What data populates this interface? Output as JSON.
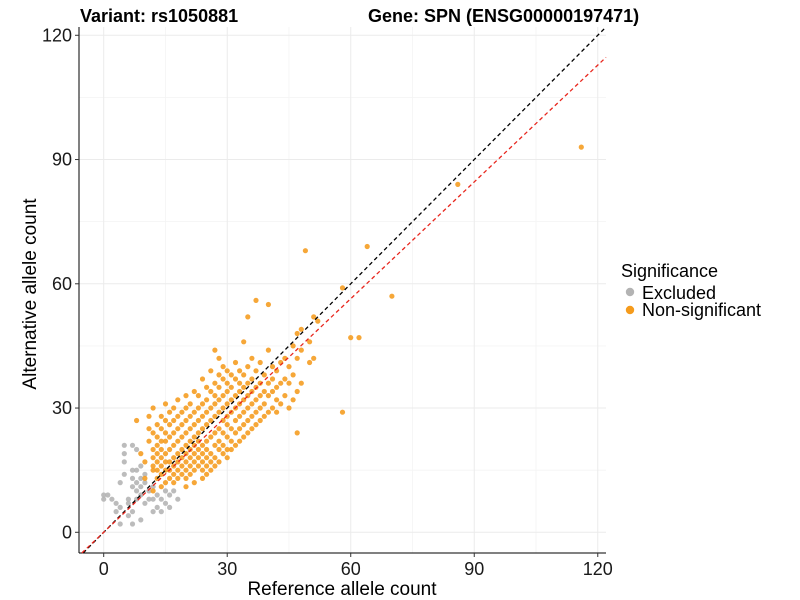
{
  "chart_data": {
    "type": "scatter",
    "title_left": "Variant: rs1050881",
    "title_right": "Gene: SPN (ENSG00000197471)",
    "xlabel": "Reference allele count",
    "ylabel": "Alternative allele count",
    "xlim": [
      -6,
      122
    ],
    "ylim": [
      -5,
      122
    ],
    "xticks": [
      0,
      30,
      60,
      90,
      120
    ],
    "yticks": [
      0,
      30,
      60,
      90,
      120
    ],
    "grid": true,
    "legend": {
      "title": "Significance",
      "position": "right",
      "entries": [
        {
          "label": "Excluded",
          "color": "#b3b3b3"
        },
        {
          "label": "Non-significant",
          "color": "#f59b1c"
        }
      ]
    },
    "reference_lines": [
      {
        "name": "identity",
        "slope": 1.0,
        "intercept": 0,
        "color": "#000000",
        "style": "dashed"
      },
      {
        "name": "fit",
        "slope": 0.94,
        "intercept": 0,
        "color": "#e8261d",
        "style": "dashed"
      }
    ],
    "series": [
      {
        "name": "Excluded",
        "color": "#b3b3b3",
        "points": [
          [
            0,
            8
          ],
          [
            0,
            9
          ],
          [
            1,
            9
          ],
          [
            2,
            8
          ],
          [
            3,
            7
          ],
          [
            3,
            5
          ],
          [
            4,
            6
          ],
          [
            4,
            2
          ],
          [
            4,
            12
          ],
          [
            5,
            14
          ],
          [
            5,
            17
          ],
          [
            5,
            19
          ],
          [
            5,
            21
          ],
          [
            6,
            4
          ],
          [
            6,
            7
          ],
          [
            6,
            8
          ],
          [
            7,
            2
          ],
          [
            7,
            5
          ],
          [
            7,
            11
          ],
          [
            7,
            13
          ],
          [
            7,
            15
          ],
          [
            7,
            21
          ],
          [
            8,
            8
          ],
          [
            8,
            10
          ],
          [
            8,
            12
          ],
          [
            8,
            15
          ],
          [
            8,
            20
          ],
          [
            9,
            3
          ],
          [
            9,
            9
          ],
          [
            9,
            11
          ],
          [
            9,
            13
          ],
          [
            9,
            16
          ],
          [
            10,
            7
          ],
          [
            10,
            12
          ],
          [
            10,
            14
          ],
          [
            11,
            8
          ],
          [
            11,
            10
          ],
          [
            12,
            5
          ],
          [
            12,
            8
          ],
          [
            12,
            11
          ],
          [
            13,
            6
          ],
          [
            13,
            9
          ],
          [
            14,
            5
          ],
          [
            14,
            8
          ],
          [
            15,
            7
          ],
          [
            15,
            10
          ],
          [
            16,
            6
          ],
          [
            16,
            9
          ],
          [
            17,
            10
          ],
          [
            18,
            8
          ]
        ]
      },
      {
        "name": "Non-significant",
        "color": "#f59b1c",
        "points": [
          [
            8,
            27
          ],
          [
            9,
            19
          ],
          [
            10,
            13
          ],
          [
            10,
            17
          ],
          [
            11,
            22
          ],
          [
            11,
            25
          ],
          [
            11,
            28
          ],
          [
            12,
            10
          ],
          [
            12,
            15
          ],
          [
            12,
            16
          ],
          [
            12,
            18
          ],
          [
            12,
            20
          ],
          [
            12,
            24
          ],
          [
            12,
            30
          ],
          [
            13,
            13
          ],
          [
            13,
            15
          ],
          [
            13,
            17
          ],
          [
            13,
            19
          ],
          [
            13,
            21
          ],
          [
            13,
            23
          ],
          [
            13,
            26
          ],
          [
            14,
            11
          ],
          [
            14,
            14
          ],
          [
            14,
            16
          ],
          [
            14,
            18
          ],
          [
            14,
            20
          ],
          [
            14,
            22
          ],
          [
            14,
            25
          ],
          [
            14,
            28
          ],
          [
            15,
            12
          ],
          [
            15,
            15
          ],
          [
            15,
            17
          ],
          [
            15,
            19
          ],
          [
            15,
            22
          ],
          [
            15,
            24
          ],
          [
            15,
            27
          ],
          [
            15,
            31
          ],
          [
            16,
            13
          ],
          [
            16,
            15
          ],
          [
            16,
            17
          ],
          [
            16,
            20
          ],
          [
            16,
            23
          ],
          [
            16,
            26
          ],
          [
            16,
            29
          ],
          [
            17,
            12
          ],
          [
            17,
            14
          ],
          [
            17,
            16
          ],
          [
            17,
            18
          ],
          [
            17,
            21
          ],
          [
            17,
            24
          ],
          [
            17,
            27
          ],
          [
            17,
            30
          ],
          [
            18,
            13
          ],
          [
            18,
            15
          ],
          [
            18,
            17
          ],
          [
            18,
            19
          ],
          [
            18,
            22
          ],
          [
            18,
            25
          ],
          [
            18,
            28
          ],
          [
            18,
            32
          ],
          [
            19,
            14
          ],
          [
            19,
            16
          ],
          [
            19,
            18
          ],
          [
            19,
            20
          ],
          [
            19,
            23
          ],
          [
            19,
            26
          ],
          [
            19,
            29
          ],
          [
            20,
            11
          ],
          [
            20,
            13
          ],
          [
            20,
            15
          ],
          [
            20,
            17
          ],
          [
            20,
            19
          ],
          [
            20,
            21
          ],
          [
            20,
            24
          ],
          [
            20,
            27
          ],
          [
            20,
            30
          ],
          [
            20,
            33
          ],
          [
            21,
            14
          ],
          [
            21,
            16
          ],
          [
            21,
            18
          ],
          [
            21,
            20
          ],
          [
            21,
            22
          ],
          [
            21,
            25
          ],
          [
            21,
            28
          ],
          [
            21,
            31
          ],
          [
            22,
            12
          ],
          [
            22,
            15
          ],
          [
            22,
            17
          ],
          [
            22,
            19
          ],
          [
            22,
            21
          ],
          [
            22,
            23
          ],
          [
            22,
            26
          ],
          [
            22,
            29
          ],
          [
            22,
            34
          ],
          [
            23,
            16
          ],
          [
            23,
            18
          ],
          [
            23,
            20
          ],
          [
            23,
            22
          ],
          [
            23,
            24
          ],
          [
            23,
            27
          ],
          [
            23,
            30
          ],
          [
            23,
            33
          ],
          [
            24,
            13
          ],
          [
            24,
            15
          ],
          [
            24,
            17
          ],
          [
            24,
            19
          ],
          [
            24,
            21
          ],
          [
            24,
            25
          ],
          [
            24,
            28
          ],
          [
            24,
            31
          ],
          [
            24,
            37
          ],
          [
            25,
            14
          ],
          [
            25,
            16
          ],
          [
            25,
            18
          ],
          [
            25,
            20
          ],
          [
            25,
            22
          ],
          [
            25,
            26
          ],
          [
            25,
            29
          ],
          [
            25,
            32
          ],
          [
            25,
            35
          ],
          [
            26,
            15
          ],
          [
            26,
            17
          ],
          [
            26,
            19
          ],
          [
            26,
            23
          ],
          [
            26,
            27
          ],
          [
            26,
            30
          ],
          [
            26,
            34
          ],
          [
            26,
            39
          ],
          [
            27,
            16
          ],
          [
            27,
            18
          ],
          [
            27,
            21
          ],
          [
            27,
            24
          ],
          [
            27,
            28
          ],
          [
            27,
            31
          ],
          [
            27,
            33
          ],
          [
            27,
            36
          ],
          [
            27,
            44
          ],
          [
            28,
            17
          ],
          [
            28,
            20
          ],
          [
            28,
            22
          ],
          [
            28,
            25
          ],
          [
            28,
            29
          ],
          [
            28,
            32
          ],
          [
            28,
            35
          ],
          [
            28,
            38
          ],
          [
            28,
            42
          ],
          [
            29,
            19
          ],
          [
            29,
            21
          ],
          [
            29,
            24
          ],
          [
            29,
            27
          ],
          [
            29,
            30
          ],
          [
            29,
            33
          ],
          [
            29,
            37
          ],
          [
            29,
            40
          ],
          [
            30,
            18
          ],
          [
            30,
            20
          ],
          [
            30,
            23
          ],
          [
            30,
            26
          ],
          [
            30,
            28
          ],
          [
            30,
            31
          ],
          [
            30,
            34
          ],
          [
            30,
            36
          ],
          [
            30,
            39
          ],
          [
            31,
            20
          ],
          [
            31,
            22
          ],
          [
            31,
            25
          ],
          [
            31,
            29
          ],
          [
            31,
            32
          ],
          [
            31,
            35
          ],
          [
            31,
            38
          ],
          [
            32,
            21
          ],
          [
            32,
            24
          ],
          [
            32,
            27
          ],
          [
            32,
            30
          ],
          [
            32,
            33
          ],
          [
            32,
            37
          ],
          [
            32,
            41
          ],
          [
            33,
            22
          ],
          [
            33,
            25
          ],
          [
            33,
            28
          ],
          [
            33,
            31
          ],
          [
            33,
            34
          ],
          [
            33,
            36
          ],
          [
            33,
            39
          ],
          [
            34,
            23
          ],
          [
            34,
            26
          ],
          [
            34,
            29
          ],
          [
            34,
            32
          ],
          [
            34,
            35
          ],
          [
            34,
            38
          ],
          [
            34,
            46
          ],
          [
            35,
            24
          ],
          [
            35,
            27
          ],
          [
            35,
            30
          ],
          [
            35,
            33
          ],
          [
            35,
            36
          ],
          [
            35,
            40
          ],
          [
            35,
            52
          ],
          [
            36,
            25
          ],
          [
            36,
            28
          ],
          [
            36,
            31
          ],
          [
            36,
            34
          ],
          [
            36,
            37
          ],
          [
            36,
            42
          ],
          [
            37,
            26
          ],
          [
            37,
            29
          ],
          [
            37,
            32
          ],
          [
            37,
            35
          ],
          [
            37,
            39
          ],
          [
            37,
            56
          ],
          [
            38,
            27
          ],
          [
            38,
            30
          ],
          [
            38,
            33
          ],
          [
            38,
            36
          ],
          [
            38,
            41
          ],
          [
            39,
            28
          ],
          [
            39,
            31
          ],
          [
            39,
            34
          ],
          [
            39,
            38
          ],
          [
            40,
            29
          ],
          [
            40,
            33
          ],
          [
            40,
            36
          ],
          [
            40,
            44
          ],
          [
            40,
            55
          ],
          [
            41,
            30
          ],
          [
            41,
            34
          ],
          [
            41,
            37
          ],
          [
            41,
            40
          ],
          [
            42,
            29
          ],
          [
            42,
            32
          ],
          [
            42,
            35
          ],
          [
            42,
            39
          ],
          [
            43,
            31
          ],
          [
            43,
            36
          ],
          [
            43,
            41
          ],
          [
            44,
            33
          ],
          [
            44,
            37
          ],
          [
            44,
            42
          ],
          [
            45,
            30
          ],
          [
            45,
            36
          ],
          [
            45,
            40
          ],
          [
            46,
            32
          ],
          [
            46,
            38
          ],
          [
            46,
            45
          ],
          [
            47,
            24
          ],
          [
            47,
            34
          ],
          [
            47,
            42
          ],
          [
            47,
            48
          ],
          [
            48,
            36
          ],
          [
            48,
            44
          ],
          [
            48,
            49
          ],
          [
            49,
            68
          ],
          [
            50,
            41
          ],
          [
            50,
            46
          ],
          [
            51,
            42
          ],
          [
            51,
            52
          ],
          [
            52,
            51
          ],
          [
            58,
            29
          ],
          [
            58,
            59
          ],
          [
            60,
            47
          ],
          [
            62,
            47
          ],
          [
            64,
            69
          ],
          [
            70,
            57
          ],
          [
            86,
            84
          ],
          [
            116,
            93
          ]
        ]
      }
    ]
  }
}
